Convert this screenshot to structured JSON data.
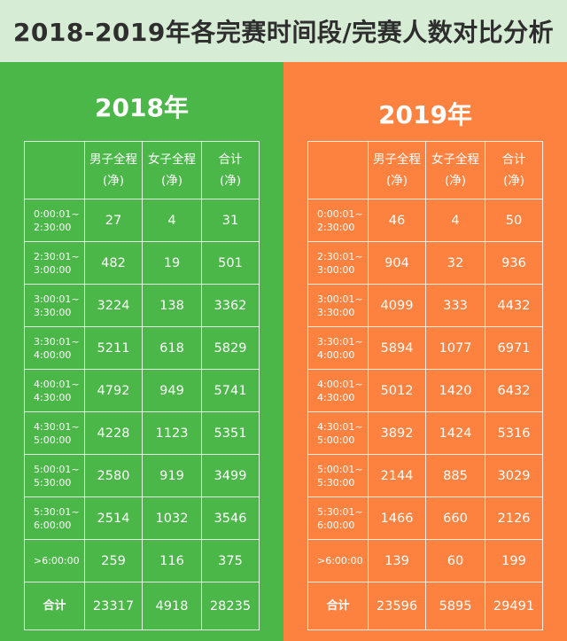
{
  "title": "2018-2019年各完赛时间段/完赛人数对比分析",
  "colors": {
    "header_bg": "#d7ecd4",
    "left_bg": "#4bb748",
    "right_bg": "#fd8240"
  },
  "columns": [
    "男子全程\n(净)",
    "女子全程\n(净)",
    "合计\n(净)"
  ],
  "columns_display": [
    {
      "line1": "男子全程",
      "line2": "(净)"
    },
    {
      "line1": "女子全程",
      "line2": "(净)"
    },
    {
      "line1": "合计",
      "line2": "(净)"
    }
  ],
  "time_ranges": [
    {
      "line1": "0:00:01~",
      "line2": "2:30:00"
    },
    {
      "line1": "2:30:01~",
      "line2": "3:00:00"
    },
    {
      "line1": "3:00:01~",
      "line2": "3:30:00"
    },
    {
      "line1": "3:30:01~",
      "line2": "4:00:00"
    },
    {
      "line1": "4:00:01~",
      "line2": "4:30:00"
    },
    {
      "line1": "4:30:01~",
      "line2": "5:00:00"
    },
    {
      "line1": "5:00:01~",
      "line2": "5:30:00"
    },
    {
      "line1": "5:30:01~",
      "line2": "6:00:00"
    },
    {
      "line1": ">6:00:00",
      "line2": ""
    }
  ],
  "total_label": "合计",
  "panels": [
    {
      "year": "2018年",
      "rows": [
        [
          "27",
          "4",
          "31"
        ],
        [
          "482",
          "19",
          "501"
        ],
        [
          "3224",
          "138",
          "3362"
        ],
        [
          "5211",
          "618",
          "5829"
        ],
        [
          "4792",
          "949",
          "5741"
        ],
        [
          "4228",
          "1123",
          "5351"
        ],
        [
          "2580",
          "919",
          "3499"
        ],
        [
          "2514",
          "1032",
          "3546"
        ],
        [
          "259",
          "116",
          "375"
        ]
      ],
      "total": [
        "23317",
        "4918",
        "28235"
      ]
    },
    {
      "year": "2019年",
      "rows": [
        [
          "46",
          "4",
          "50"
        ],
        [
          "904",
          "32",
          "936"
        ],
        [
          "4099",
          "333",
          "4432"
        ],
        [
          "5894",
          "1077",
          "6971"
        ],
        [
          "5012",
          "1420",
          "6432"
        ],
        [
          "3892",
          "1424",
          "5316"
        ],
        [
          "2144",
          "885",
          "3029"
        ],
        [
          "1466",
          "660",
          "2126"
        ],
        [
          "139",
          "60",
          "199"
        ]
      ],
      "total": [
        "23596",
        "5895",
        "29491"
      ]
    }
  ]
}
